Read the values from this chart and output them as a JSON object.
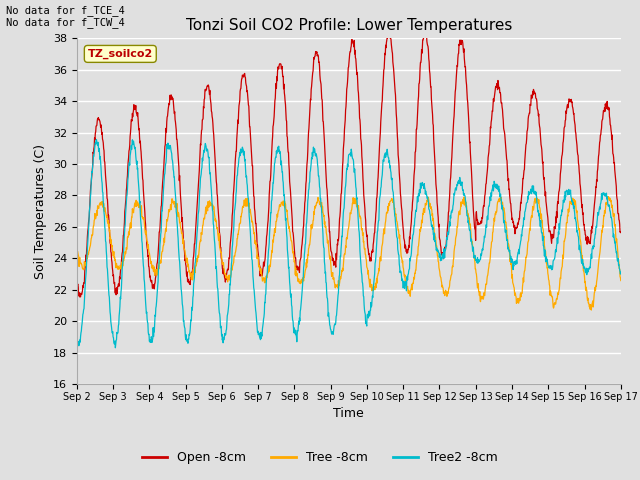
{
  "title": "Tonzi Soil CO2 Profile: Lower Temperatures",
  "xlabel": "Time",
  "ylabel": "Soil Temperatures (C)",
  "ylim": [
    16,
    38
  ],
  "yticks": [
    16,
    18,
    20,
    22,
    24,
    26,
    28,
    30,
    32,
    34,
    36,
    38
  ],
  "background_color": "#e0e0e0",
  "plot_bg_color": "#e0e0e0",
  "annotation_text": "No data for f_TCE_4\nNo data for f_TCW_4",
  "legend_label_text": "TZ_soilco2",
  "legend_entries": [
    "Open -8cm",
    "Tree -8cm",
    "Tree2 -8cm"
  ],
  "legend_colors": [
    "#cc0000",
    "#ffaa00",
    "#00bbcc"
  ],
  "line_colors": {
    "open": "#cc0000",
    "tree": "#ffaa00",
    "tree2": "#00bbcc"
  },
  "x_tick_labels": [
    "Sep 2",
    "Sep 3",
    "Sep 4",
    "Sep 5",
    "Sep 6",
    "Sep 7",
    "Sep 8",
    "Sep 9",
    "Sep 10",
    "Sep 11",
    "Sep 12",
    "Sep 13",
    "Sep 14",
    "Sep 15",
    "Sep 16",
    "Sep 17"
  ],
  "num_days": 15,
  "samples_per_day": 96
}
